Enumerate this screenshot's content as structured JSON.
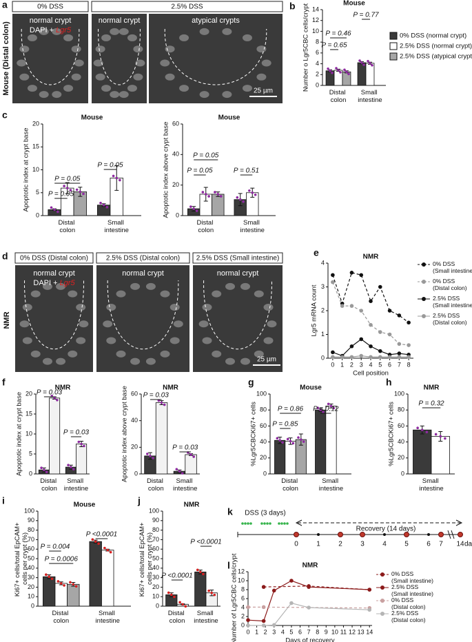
{
  "figure_a": {
    "label": "a",
    "headers": [
      "0% DSS",
      "2.5% DSS"
    ],
    "side_label": "Mouse (Distal colon)",
    "captions": [
      "normal crypt",
      "normal crypt",
      "atypical crypts"
    ],
    "stain": [
      "DAPI +",
      "Lgr5"
    ],
    "scale": "25 µm"
  },
  "figure_d": {
    "label": "d",
    "headers": [
      "0% DSS (Distal colon)",
      "2.5% DSS (Distal colon)",
      "2.5% DSS (Small intestine)"
    ],
    "side_label": "NMR",
    "captions": [
      "normal crypt",
      "normal crypt",
      "normal crypt"
    ],
    "stain": [
      "DAPI +",
      "Lgr5"
    ],
    "scale": "25 µm"
  },
  "timeline": {
    "label": "k",
    "dss": "DSS (3 days)",
    "recovery": "Recovery (14 days)",
    "days": [
      0,
      1,
      2,
      3,
      4,
      5,
      6,
      7,
      14
    ],
    "unit": "days"
  },
  "chart_data": [
    {
      "type": "bar",
      "label": "b",
      "title": "Mouse",
      "y_label": "Number o Lgr5CBC cells/crypt",
      "categories": [
        "Distal colon",
        "Small intestine"
      ],
      "ylim": [
        0,
        14
      ],
      "yticks": [
        0,
        2,
        4,
        6,
        8,
        10,
        12,
        14
      ],
      "series": [
        {
          "name": "0% DSS (normal crypt)",
          "color": "#3a3a3a",
          "values": [
            2.7,
            4.2
          ],
          "errors": [
            0.2,
            0.2
          ]
        },
        {
          "name": "2.5% DSS (normal crypt)",
          "color": "#ffffff",
          "values": [
            2.8,
            4.1
          ],
          "errors": [
            0.2,
            0.2
          ]
        },
        {
          "name": "2.5% DSS  (atypical crypt)",
          "color": "#a6a6a6",
          "values": [
            2.5,
            null
          ],
          "errors": [
            0.2,
            null
          ]
        }
      ],
      "annotations": [
        "P = 0.46",
        "P = 0.65",
        "P = 0.77"
      ]
    },
    {
      "type": "bar",
      "label": "c",
      "title": "Mouse",
      "y_label": "Apoptotic index at crypt base",
      "categories": [
        "Distal colon",
        "Small intestine"
      ],
      "ylim": [
        0,
        20
      ],
      "yticks": [
        0,
        5,
        10,
        15,
        20
      ],
      "series": [
        {
          "color": "#3a3a3a",
          "values": [
            1.3,
            2.3
          ],
          "errors": [
            0.2,
            0.3
          ]
        },
        {
          "color": "#ffffff",
          "values": [
            6,
            8.2
          ],
          "errors": [
            1.2,
            2.7
          ]
        },
        {
          "color": "#a6a6a6",
          "values": [
            5.2,
            null
          ],
          "errors": [
            1,
            null
          ]
        }
      ],
      "annotations": [
        "P = 0.05",
        "P = 0.05",
        "P = 0.05"
      ]
    },
    {
      "type": "bar",
      "title": "Mouse",
      "y_label": "Apoptotic index above crypt base",
      "categories": [
        "Distal colon",
        "Small intestine"
      ],
      "ylim": [
        0,
        60
      ],
      "yticks": [
        0,
        20,
        40,
        60
      ],
      "series": [
        {
          "color": "#3a3a3a",
          "values": [
            4.5,
            10.5
          ],
          "errors": [
            1.5,
            4
          ]
        },
        {
          "color": "#ffffff",
          "values": [
            14,
            15
          ],
          "errors": [
            4.5,
            3
          ]
        },
        {
          "color": "#a6a6a6",
          "values": [
            14,
            null
          ],
          "errors": [
            1.5,
            null
          ]
        }
      ],
      "annotations": [
        "P = 0.05",
        "P = 0.05",
        "P = 0.51"
      ]
    },
    {
      "type": "line",
      "label": "e",
      "title": "NMR",
      "y_label": "Lgr5 mRNA count",
      "x_label": "Cell position",
      "x": [
        0,
        1,
        2,
        3,
        4,
        5,
        6,
        7,
        8
      ],
      "xlim": [
        -0.5,
        8.5
      ],
      "xticks": [
        0,
        1,
        2,
        3,
        4,
        5,
        6,
        7,
        8
      ],
      "ylim": [
        0,
        4
      ],
      "yticks": [
        0,
        1,
        2,
        3,
        4
      ],
      "series": [
        {
          "name": "0% DSS (Small intestine)",
          "color": "#111111",
          "linestyle": "dashed",
          "values": [
            3.5,
            2.3,
            3.6,
            3.5,
            2.4,
            3.0,
            2.0,
            1.8,
            1.5
          ]
        },
        {
          "name": "0% DSS (Distal colon)",
          "color": "#999999",
          "linestyle": "dashed",
          "values": [
            3.2,
            2.2,
            2.2,
            2.0,
            1.4,
            1.1,
            1.0,
            0.6,
            0.55
          ]
        },
        {
          "name": "2.5% DSS (Small intestine)",
          "color": "#111111",
          "linestyle": "solid",
          "values": [
            0.25,
            0.1,
            0.5,
            0.8,
            0.5,
            0.3,
            0.15,
            0.2,
            0.15
          ]
        },
        {
          "name": "2.5% DSS (Distal colon)",
          "color": "#999999",
          "linestyle": "solid",
          "values": [
            0.05,
            0.05,
            0.05,
            0.1,
            0.05,
            0.05,
            0.05,
            0.05,
            0.05
          ]
        }
      ]
    },
    {
      "type": "bar",
      "label": "f",
      "title": "NMR",
      "y_label": "Apoptotic index at crypt base",
      "categories": [
        "Distal colon",
        "Small intestine"
      ],
      "ylim": [
        0,
        20
      ],
      "yticks": [
        0,
        5,
        10,
        15,
        20
      ],
      "series": [
        {
          "color": "#3a3a3a",
          "values": [
            1,
            1.7
          ],
          "errors": [
            0.5,
            0.5
          ]
        },
        {
          "color": "#f2f2f2",
          "values": [
            19,
            7.5
          ],
          "errors": [
            0.3,
            0.7
          ]
        }
      ],
      "annotations": [
        "P = 0.03",
        "P = 0.03"
      ]
    },
    {
      "type": "bar",
      "title": "NMR",
      "y_label": "Apoptotic index above crypt base",
      "categories": [
        "Distal colon",
        "Small intestine"
      ],
      "ylim": [
        0,
        60
      ],
      "yticks": [
        0,
        20,
        40,
        60
      ],
      "series": [
        {
          "color": "#3a3a3a",
          "values": [
            13.5,
            2
          ],
          "errors": [
            2.5,
            1
          ]
        },
        {
          "color": "#f2f2f2",
          "values": [
            53.5,
            14.5
          ],
          "errors": [
            1.5,
            0.7
          ]
        }
      ],
      "annotations": [
        "P = 0.03",
        "P = 0.03"
      ]
    },
    {
      "type": "bar",
      "label": "g",
      "title": "Mouse",
      "y_label": "%Lgr5CBCKi67+ cells",
      "categories": [
        "Distal colon",
        "Small intestine"
      ],
      "ylim": [
        0,
        100
      ],
      "yticks": [
        0,
        20,
        40,
        60,
        80,
        100
      ],
      "series": [
        {
          "color": "#3a3a3a",
          "values": [
            42,
            80
          ],
          "errors": [
            4,
            2
          ]
        },
        {
          "color": "#ffffff",
          "values": [
            41,
            85
          ],
          "errors": [
            4,
            2.5
          ]
        },
        {
          "color": "#a6a6a6",
          "values": [
            43,
            null
          ],
          "errors": [
            7,
            null
          ]
        }
      ],
      "annotations": [
        "P = 0.85",
        "P = 0.86",
        "P = 0.12"
      ]
    },
    {
      "type": "bar",
      "label": "h",
      "title": "NMR",
      "y_label": "%Lgr5CBCKi67+ cells",
      "categories": [
        "Small intestine"
      ],
      "ylim": [
        0,
        100
      ],
      "yticks": [
        0,
        20,
        40,
        60,
        80,
        100
      ],
      "series": [
        {
          "color": "#3a3a3a",
          "values": [
            55
          ],
          "errors": [
            5
          ]
        },
        {
          "color": "#ffffff",
          "values": [
            47
          ],
          "errors": [
            6
          ]
        }
      ],
      "annotations": [
        "P = 0.32"
      ]
    },
    {
      "type": "bar",
      "label": "i",
      "title": "Mouse",
      "y_label": "Ki67+ cells/total EpCAM+ cells per crypt (%)",
      "categories": [
        "Distal colon",
        "Small intestine"
      ],
      "ylim": [
        0,
        100
      ],
      "yticks": [
        0,
        10,
        20,
        30,
        40,
        50,
        60,
        70,
        80,
        90,
        100
      ],
      "series": [
        {
          "color": "#3a3a3a",
          "values": [
            31,
            68
          ],
          "errors": [
            2,
            1.5
          ]
        },
        {
          "color": "#ffffff",
          "values": [
            24,
            59
          ],
          "errors": [
            1.5,
            1
          ]
        },
        {
          "color": "#a6a6a6",
          "values": [
            23,
            null
          ],
          "errors": [
            2,
            null
          ]
        }
      ],
      "annotations": [
        "P = 0.004",
        "P = 0.0006",
        "P <0.0001"
      ]
    },
    {
      "type": "bar",
      "label": "j",
      "title": "NMR",
      "y_label": "Ki67+ cells/total EpCAM+ cells per crypt (%)",
      "categories": [
        "Distal colon",
        "Small intestine"
      ],
      "ylim": [
        0,
        100
      ],
      "yticks": [
        0,
        10,
        20,
        30,
        40,
        50,
        60,
        70,
        80,
        90,
        100
      ],
      "series": [
        {
          "color": "#3a3a3a",
          "values": [
            12,
            36
          ],
          "errors": [
            2,
            2
          ]
        },
        {
          "color": "#f2f2f2",
          "values": [
            2,
            14
          ],
          "errors": [
            0.5,
            3
          ]
        }
      ],
      "annotations": [
        "P <0.0001",
        "P <0.0001"
      ]
    },
    {
      "type": "line",
      "label": "l",
      "title": "NMR",
      "y_label": "Number of Lgr5CBC cells/crypt",
      "x_label": "Days of recovery",
      "xlim": [
        0,
        14.3
      ],
      "xticks": [
        0,
        1,
        2,
        3,
        4,
        5,
        6,
        7,
        8,
        9,
        10,
        11,
        12,
        13,
        14
      ],
      "ylim": [
        0,
        12
      ],
      "yticks": [
        0,
        2,
        4,
        6,
        8,
        10,
        12
      ],
      "series": [
        {
          "name": "0% DSS (Small intestine)",
          "color": "#8b1a1a",
          "linestyle": "dashed",
          "x": [
            1.8,
            7,
            14
          ],
          "values": [
            8.6,
            8.8,
            8.0
          ]
        },
        {
          "name": "2.5% DSS (Small intestine)",
          "color": "#8b1a1a",
          "linestyle": "solid",
          "x": [
            0,
            1.8,
            3,
            5,
            7,
            14
          ],
          "values": [
            1.2,
            1.0,
            7.8,
            10.0,
            8.6,
            8.0
          ]
        },
        {
          "name": "0% DSS (Distal colon)",
          "color": "#c9a0a0",
          "linestyle": "dashed",
          "x": [
            0,
            1.8,
            14
          ],
          "values": [
            4.1,
            4.1,
            3.9
          ]
        },
        {
          "name": "2.5% DSS (Distal colon)",
          "color": "#b5b5b5",
          "linestyle": "solid",
          "x": [
            0,
            1.8,
            3,
            5,
            7,
            14
          ],
          "values": [
            0,
            0,
            0.1,
            5.0,
            4.0,
            3.5
          ]
        }
      ]
    }
  ]
}
